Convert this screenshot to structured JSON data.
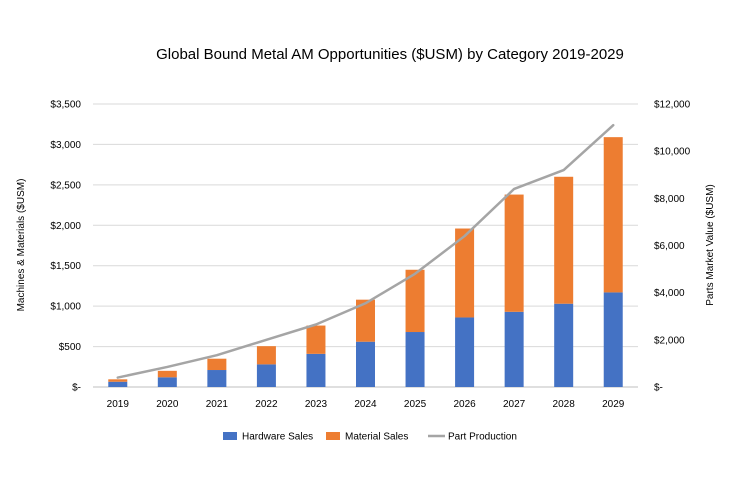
{
  "chart_data": {
    "type": "bar",
    "title": "Global Bound Metal AM Opportunities  ($USM) by Category 2019-2029",
    "categories": [
      "2019",
      "2020",
      "2021",
      "2022",
      "2023",
      "2024",
      "2025",
      "2026",
      "2027",
      "2028",
      "2029"
    ],
    "series": [
      {
        "name": "Hardware Sales",
        "kind": "stacked-bar",
        "axis": "left",
        "color": "#4472c4",
        "values": [
          65,
          120,
          210,
          280,
          410,
          560,
          680,
          860,
          930,
          1030,
          1170
        ]
      },
      {
        "name": "Material Sales",
        "kind": "stacked-bar",
        "axis": "left",
        "color": "#ed7d31",
        "values": [
          30,
          80,
          140,
          225,
          350,
          520,
          770,
          1100,
          1450,
          1570,
          1920
        ]
      },
      {
        "name": "Part Production",
        "kind": "line",
        "axis": "right",
        "color": "#a5a5a5",
        "values": [
          400,
          850,
          1350,
          2000,
          2650,
          3550,
          4800,
          6400,
          8400,
          9200,
          11100
        ]
      }
    ],
    "ylabel": "Machines & Materials ($USM)",
    "ylim": [
      0,
      3500
    ],
    "yticks": [
      "$-",
      "$500",
      "$1,000",
      "$1,500",
      "$2,000",
      "$2,500",
      "$3,000",
      "$3,500"
    ],
    "y2label": "Parts Market Value ($USM)",
    "y2lim": [
      0,
      12000
    ],
    "y2ticks": [
      "$-",
      "$2,000",
      "$4,000",
      "$6,000",
      "$8,000",
      "$10,000",
      "$12,000"
    ],
    "grid": true,
    "legend": "bottom"
  }
}
